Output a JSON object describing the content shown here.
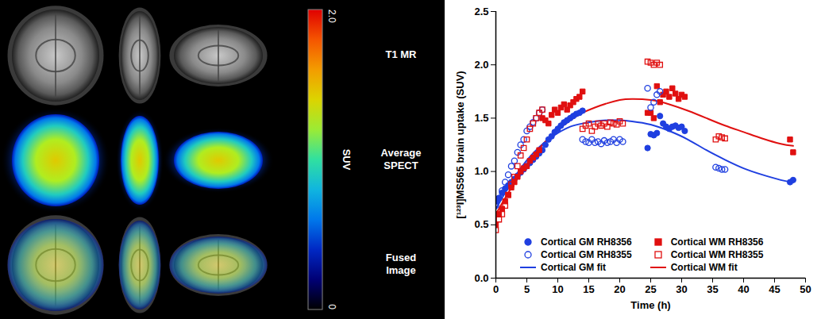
{
  "chart_data": [
    {
      "type": "image",
      "row_labels": [
        "T1 MR",
        "Average SPECT",
        "Fused Image"
      ],
      "colorbar": {
        "label": "SUV",
        "range": [
          0,
          2.0
        ],
        "ticks": [
          0,
          {
            "value": 2,
            "label": "2.0"
          }
        ]
      }
    },
    {
      "type": "scatter",
      "xlabel": "Time (h)",
      "ylabel": "[¹²³I]MS565 brain uptake (SUV)",
      "xlim": [
        0,
        50
      ],
      "xticks": [
        0,
        5,
        10,
        15,
        20,
        25,
        30,
        35,
        40,
        45,
        50
      ],
      "ylim": [
        0,
        2.5
      ],
      "yticks": [
        {
          "value": 0,
          "label": "0.0"
        },
        0.5,
        {
          "value": 1,
          "label": "1.0"
        },
        1.5,
        {
          "value": 2,
          "label": "2.0"
        },
        2.5
      ],
      "legend": "bottom",
      "series": [
        {
          "name": "Cortical GM RH8356",
          "color": "#1f3fe0",
          "marker": "circle",
          "type": "scatter",
          "x": [
            0.2,
            0.5,
            1,
            1.5,
            2,
            2.5,
            3,
            3.5,
            4,
            4.5,
            5,
            5.5,
            6,
            6.5,
            7,
            7.5,
            8,
            8.5,
            9,
            9.5,
            10,
            10.5,
            11,
            11.5,
            12,
            12.5,
            13,
            13.5,
            14,
            24.5,
            25,
            25.5,
            26,
            26.5,
            27,
            27.5,
            28,
            28.5,
            29,
            29.5,
            30,
            30.5,
            47.5,
            48
          ],
          "values": [
            0.72,
            0.75,
            0.8,
            0.84,
            0.87,
            0.9,
            0.93,
            0.96,
            0.99,
            1.02,
            1.05,
            1.08,
            1.11,
            1.14,
            1.17,
            1.2,
            1.25,
            1.3,
            1.33,
            1.37,
            1.4,
            1.43,
            1.46,
            1.48,
            1.5,
            1.52,
            1.54,
            1.55,
            1.57,
            1.22,
            1.35,
            1.34,
            1.36,
            1.52,
            1.45,
            1.42,
            1.4,
            1.42,
            1.43,
            1.41,
            1.42,
            1.38,
            0.9,
            0.92
          ]
        },
        {
          "name": "Cortical WM RH8356",
          "color": "#e01010",
          "marker": "square",
          "type": "scatter",
          "x": [
            0,
            0.5,
            1,
            1.5,
            2,
            2.5,
            3,
            3.5,
            4,
            4.5,
            5,
            5.5,
            6,
            6.5,
            7,
            7.5,
            8,
            8.5,
            9,
            9.5,
            10,
            10.5,
            11,
            11.5,
            12,
            12.5,
            13,
            13.5,
            14,
            24.5,
            25,
            25.5,
            26,
            26.5,
            27,
            27.5,
            28,
            28.5,
            29,
            29.5,
            30,
            30.5,
            47.5,
            48
          ],
          "values": [
            0.5,
            0.6,
            0.65,
            0.72,
            0.78,
            0.85,
            0.9,
            0.95,
            1.0,
            1.03,
            1.05,
            1.1,
            1.13,
            1.16,
            1.2,
            1.5,
            1.48,
            1.45,
            1.53,
            1.58,
            1.55,
            1.6,
            1.63,
            1.58,
            1.62,
            1.65,
            1.68,
            1.7,
            1.75,
            1.55,
            1.55,
            1.5,
            1.8,
            1.65,
            1.72,
            1.75,
            1.7,
            1.78,
            1.73,
            1.68,
            1.72,
            1.7,
            1.3,
            1.18
          ]
        },
        {
          "name": "Cortical GM RH8355",
          "color": "#1f3fe0",
          "marker": "open_circle",
          "type": "scatter",
          "x": [
            0,
            0.5,
            1,
            1.5,
            2,
            2.5,
            3,
            3.5,
            4,
            4.5,
            5,
            5.5,
            6,
            6.5,
            7,
            7.5,
            14,
            14.5,
            15,
            15.5,
            16,
            16.5,
            17,
            17.5,
            18,
            18.5,
            19,
            19.5,
            20,
            20.5,
            24.5,
            25,
            25.5,
            26,
            26.5,
            35.5,
            36,
            36.5,
            37
          ],
          "values": [
            0.68,
            0.75,
            0.82,
            0.9,
            0.97,
            1.05,
            1.1,
            1.18,
            1.25,
            1.3,
            1.38,
            1.42,
            1.46,
            1.5,
            1.55,
            1.58,
            1.3,
            1.28,
            1.27,
            1.3,
            1.27,
            1.28,
            1.26,
            1.29,
            1.27,
            1.28,
            1.3,
            1.27,
            1.3,
            1.28,
            1.78,
            1.6,
            1.65,
            1.72,
            1.75,
            1.04,
            1.03,
            1.02,
            1.02
          ]
        },
        {
          "name": "Cortical WM RH8355",
          "color": "#e01010",
          "marker": "open_square",
          "type": "scatter",
          "x": [
            0,
            0.5,
            1,
            1.5,
            2,
            2.5,
            3,
            3.5,
            4,
            4.5,
            5,
            5.5,
            6,
            6.5,
            7,
            7.5,
            14,
            14.5,
            15,
            15.5,
            16,
            16.5,
            17,
            17.5,
            18,
            18.5,
            19,
            19.5,
            20,
            20.5,
            24.5,
            25,
            25.5,
            26,
            26.5,
            35.5,
            36,
            36.5,
            37
          ],
          "values": [
            0.45,
            0.55,
            0.6,
            0.68,
            0.78,
            0.88,
            0.95,
            1.05,
            1.15,
            1.22,
            1.3,
            1.4,
            1.45,
            1.5,
            1.55,
            1.58,
            1.4,
            1.43,
            1.45,
            1.38,
            1.42,
            1.45,
            1.43,
            1.45,
            1.42,
            1.46,
            1.45,
            1.44,
            1.47,
            1.45,
            2.03,
            2.02,
            2.0,
            2.02,
            2.0,
            1.3,
            1.33,
            1.32,
            1.31
          ]
        },
        {
          "name": "Cortical GM fit",
          "color": "#1f3fe0",
          "type": "line",
          "line_style": "solid",
          "x": [
            0,
            2,
            4,
            6,
            8,
            10,
            12,
            14,
            16,
            18,
            20,
            22,
            25,
            28,
            31,
            34,
            37,
            40,
            43,
            46,
            48
          ],
          "values": [
            0.65,
            0.85,
            1.03,
            1.17,
            1.28,
            1.36,
            1.42,
            1.45,
            1.47,
            1.48,
            1.48,
            1.47,
            1.44,
            1.38,
            1.3,
            1.2,
            1.11,
            1.03,
            0.97,
            0.92,
            0.9
          ]
        },
        {
          "name": "Cortical WM fit",
          "color": "#e01010",
          "type": "line",
          "line_style": "solid",
          "x": [
            0,
            2,
            4,
            6,
            8,
            10,
            12,
            14,
            16,
            18,
            20,
            22,
            25,
            28,
            31,
            34,
            37,
            40,
            43,
            46,
            48
          ],
          "values": [
            0.6,
            0.8,
            0.98,
            1.14,
            1.28,
            1.39,
            1.48,
            1.55,
            1.6,
            1.64,
            1.67,
            1.68,
            1.67,
            1.63,
            1.57,
            1.5,
            1.43,
            1.37,
            1.31,
            1.26,
            1.24
          ]
        }
      ]
    }
  ]
}
